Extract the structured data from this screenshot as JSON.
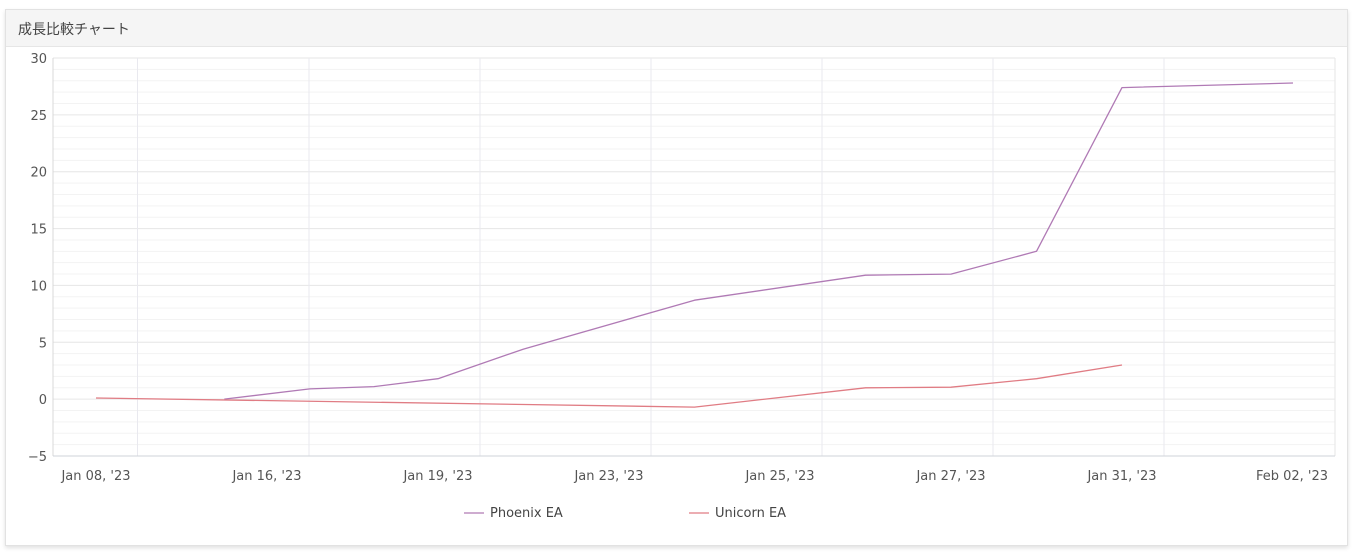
{
  "panel": {
    "title": "成長比較チャート"
  },
  "chart_data": {
    "type": "line",
    "title": "",
    "xlabel": "",
    "ylabel": "",
    "ylim": [
      -5,
      30
    ],
    "yticks": [
      "30",
      "25",
      "20",
      "15",
      "10",
      "5",
      "0",
      "−5"
    ],
    "x_tick_labels": [
      "Jan 08, '23",
      "Jan 16, '23",
      "Jan 19, '23",
      "Jan 23, '23",
      "Jan 25, '23",
      "Jan 27, '23",
      "Jan 31, '23",
      "Feb 02, '23"
    ],
    "grid": true,
    "legend_position": "bottom",
    "series": [
      {
        "name": "Phoenix EA",
        "color": "#b07ab5",
        "points": [
          {
            "x": 1.5,
            "y": 0.0
          },
          {
            "x": 2.5,
            "y": 0.9
          },
          {
            "x": 3.25,
            "y": 1.1
          },
          {
            "x": 4.0,
            "y": 1.8
          },
          {
            "x": 5.0,
            "y": 4.4
          },
          {
            "x": 7.0,
            "y": 8.7
          },
          {
            "x": 9.0,
            "y": 10.9
          },
          {
            "x": 10.0,
            "y": 11.0
          },
          {
            "x": 11.0,
            "y": 13.0
          },
          {
            "x": 12.0,
            "y": 27.4
          },
          {
            "x": 14.0,
            "y": 27.8
          }
        ]
      },
      {
        "name": "Unicorn EA",
        "color": "#e07c84",
        "points": [
          {
            "x": 0.0,
            "y": 0.1
          },
          {
            "x": 7.0,
            "y": -0.7
          },
          {
            "x": 9.0,
            "y": 1.0
          },
          {
            "x": 10.0,
            "y": 1.05
          },
          {
            "x": 11.0,
            "y": 1.8
          },
          {
            "x": 12.0,
            "y": 3.0
          }
        ]
      }
    ]
  }
}
